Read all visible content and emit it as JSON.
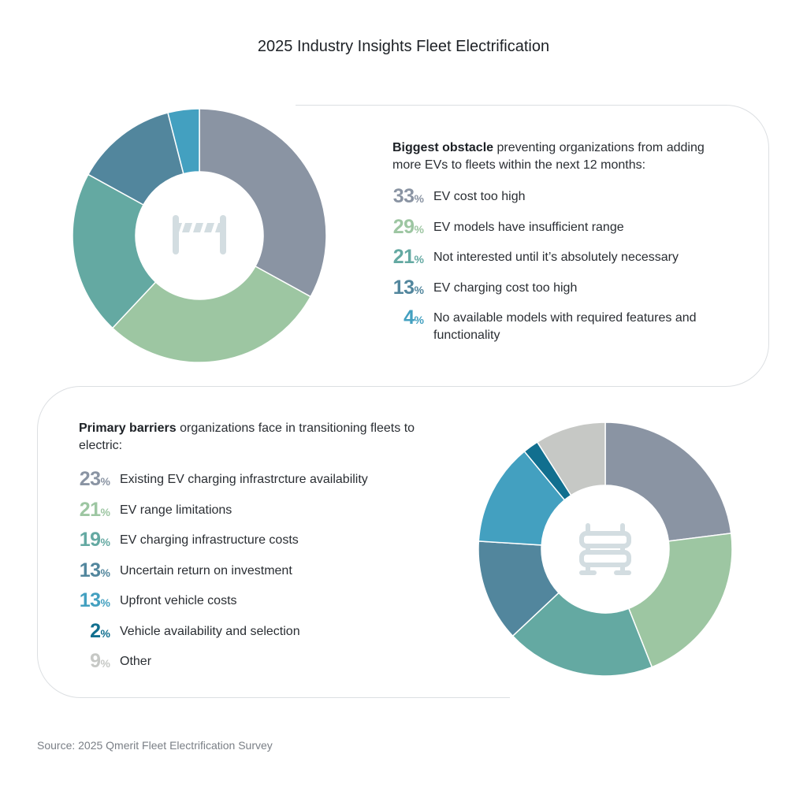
{
  "title": "2025 Industry Insights Fleet Electrification",
  "source": "Source: 2025 Qmerit Fleet Electrification Survey",
  "chart_data": [
    {
      "type": "pie",
      "variant": "donut",
      "center_icon": "road-barrier-icon",
      "intro_bold": "Biggest obstacle",
      "intro_rest": " preventing organizations from adding more EVs to fleets within the next 12 months:",
      "categories": [
        "EV cost too high",
        "EV models have insufficient range",
        "Not interested until it’s absolutely necessary",
        "EV charging cost too high",
        "No available models with required features and functionality"
      ],
      "values": [
        33,
        29,
        21,
        13,
        4
      ],
      "unit": "%",
      "colors": [
        "#8a94a3",
        "#9dc6a2",
        "#64a9a2",
        "#52869d",
        "#43a0c0"
      ]
    },
    {
      "type": "pie",
      "variant": "donut",
      "center_icon": "barricade-icon",
      "intro_bold": "Primary barriers",
      "intro_rest": " organizations face in transitioning fleets to electric:",
      "categories": [
        "Existing EV charging infrastrcture availability",
        "EV range limitations",
        "EV charging infrastructure costs",
        "Uncertain return on investment",
        "Upfront vehicle costs",
        "Vehicle availability and selection",
        "Other"
      ],
      "values": [
        23,
        21,
        19,
        13,
        13,
        2,
        9
      ],
      "unit": "%",
      "colors": [
        "#8a94a3",
        "#9dc6a2",
        "#64a9a2",
        "#52869d",
        "#43a0c0",
        "#116f8f",
        "#c6c8c5"
      ]
    }
  ]
}
